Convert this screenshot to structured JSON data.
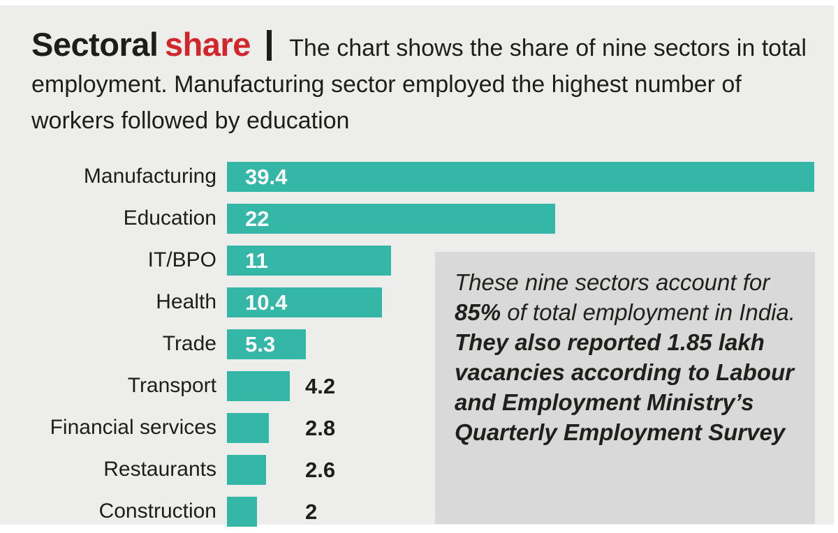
{
  "header": {
    "title_black": "Sectoral",
    "title_red": "share",
    "description": "The chart shows the share of nine sectors in total employment. Manufacturing sector employed the highest number of workers followed by education"
  },
  "chart_data": {
    "type": "bar",
    "orientation": "horizontal",
    "title": "Sectoral share",
    "categories": [
      "Manufacturing",
      "Education",
      "IT/BPO",
      "Health",
      "Trade",
      "Transport",
      "Financial services",
      "Restaurants",
      "Construction"
    ],
    "values": [
      39.4,
      22,
      11,
      10.4,
      5.3,
      4.2,
      2.8,
      2.6,
      2
    ],
    "value_labels": [
      "39.4",
      "22",
      "11",
      "10.4",
      "5.3",
      "4.2",
      "2.8",
      "2.6",
      "2"
    ],
    "value_label_inside": [
      true,
      true,
      true,
      true,
      true,
      false,
      false,
      false,
      false
    ],
    "xlim": [
      0,
      39.4
    ],
    "grid": false,
    "legend": false,
    "bar_color": "#35b7a7"
  },
  "note": {
    "regular_pre": "These nine sectors account for ",
    "bold_stat": "85%",
    "regular_post": " of total employment in India.",
    "bold_sentence": "They also reported 1.85 lakh vacancies according to Labour and Employment Ministry’s Quarterly Employment Survey"
  },
  "colors": {
    "bar_teal": "#35b7a7",
    "accent_red": "#d2262b",
    "card_background": "#ededec",
    "note_background": "#d9d9d9",
    "ink": "#1d1d1b"
  }
}
